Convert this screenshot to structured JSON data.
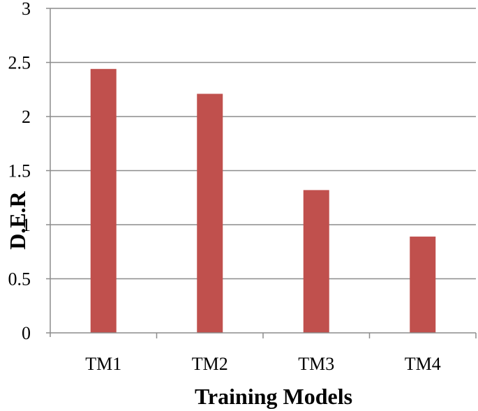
{
  "chart_data": {
    "type": "bar",
    "categories": [
      "TM1",
      "TM2",
      "TM3",
      "TM4"
    ],
    "values": [
      2.44,
      2.21,
      1.32,
      0.89
    ],
    "title": "",
    "xlabel": "Training Models",
    "ylabel": "D.E.R",
    "ylim": [
      0,
      3
    ],
    "yticks": [
      "0",
      "0.5",
      "1",
      "1.5",
      "2",
      "2.5",
      "3"
    ],
    "grid": true,
    "legend": "none",
    "bar_color": "#c0504d"
  }
}
